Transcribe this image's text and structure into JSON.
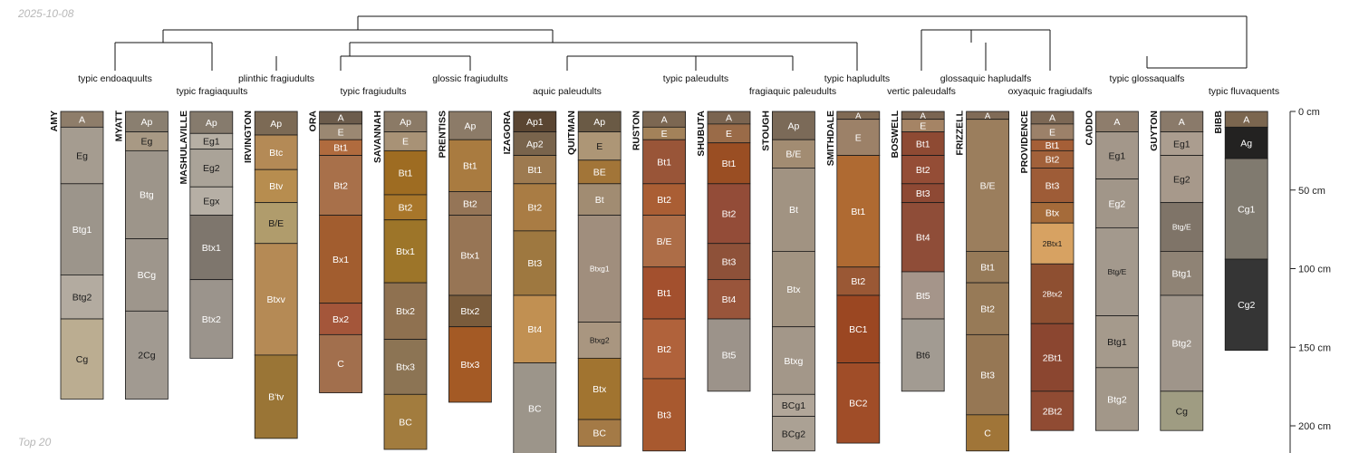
{
  "date_stamp": "2025-10-08",
  "footer_note": "Top 20",
  "depth_axis": {
    "unit": "cm",
    "ticks": [
      {
        "value": 0,
        "label": "0 cm"
      },
      {
        "value": 50,
        "label": "50 cm"
      },
      {
        "value": 100,
        "label": "100 cm"
      },
      {
        "value": 150,
        "label": "150 cm"
      },
      {
        "value": 200,
        "label": "200 cm"
      }
    ]
  },
  "taxa": [
    {
      "label": "typic endoaquults"
    },
    {
      "label": "typic fragiaquults"
    },
    {
      "label": "plinthic fragiudults"
    },
    {
      "label": "typic fragiudults"
    },
    {
      "label": "glossic fragiudults"
    },
    {
      "label": "aquic paleudults"
    },
    {
      "label": "typic paleudults"
    },
    {
      "label": "fragiaquic paleudults"
    },
    {
      "label": "typic hapludults"
    },
    {
      "label": "vertic paleudalfs"
    },
    {
      "label": "glossaquic hapludalfs"
    },
    {
      "label": "oxyaquic fragiudalfs"
    },
    {
      "label": "typic glossaqualfs"
    },
    {
      "label": "typic fluvaquents"
    }
  ],
  "profiles": [
    {
      "name": "AMY",
      "horizons": [
        {
          "name": "A",
          "top": 0,
          "bottom": 10,
          "color": "#8e7d6a"
        },
        {
          "name": "Eg",
          "top": 10,
          "bottom": 46,
          "color": "#a59c90"
        },
        {
          "name": "Btg1",
          "top": 46,
          "bottom": 104,
          "color": "#9c958b"
        },
        {
          "name": "Btg2",
          "top": 104,
          "bottom": 132,
          "color": "#b3aba0"
        },
        {
          "name": "Cg",
          "top": 132,
          "bottom": 183,
          "color": "#bbad91"
        }
      ]
    },
    {
      "name": "MYATT",
      "horizons": [
        {
          "name": "Ap",
          "top": 0,
          "bottom": 13,
          "color": "#8a7f70"
        },
        {
          "name": "Eg",
          "top": 13,
          "bottom": 25,
          "color": "#a89984"
        },
        {
          "name": "Btg",
          "top": 25,
          "bottom": 81,
          "color": "#9d958a"
        },
        {
          "name": "BCg",
          "top": 81,
          "bottom": 127,
          "color": "#9e968c"
        },
        {
          "name": "2Cg",
          "top": 127,
          "bottom": 183,
          "color": "#a19a91"
        }
      ]
    },
    {
      "name": "MASHULAVILLE",
      "horizons": [
        {
          "name": "Ap",
          "top": 0,
          "bottom": 14,
          "color": "#867b6d"
        },
        {
          "name": "Eg1",
          "top": 14,
          "bottom": 24,
          "color": "#b6afa4"
        },
        {
          "name": "Eg2",
          "top": 24,
          "bottom": 48,
          "color": "#aaa398"
        },
        {
          "name": "Egx",
          "top": 48,
          "bottom": 66,
          "color": "#b6afa5"
        },
        {
          "name": "Btx1",
          "top": 66,
          "bottom": 107,
          "color": "#7e766d"
        },
        {
          "name": "Btx2",
          "top": 107,
          "bottom": 157,
          "color": "#9b948c"
        }
      ]
    },
    {
      "name": "IRVINGTON",
      "horizons": [
        {
          "name": "Ap",
          "top": 0,
          "bottom": 15,
          "color": "#7c6a55"
        },
        {
          "name": "Btc",
          "top": 15,
          "bottom": 37,
          "color": "#b48a56"
        },
        {
          "name": "Btv",
          "top": 37,
          "bottom": 58,
          "color": "#b78d4f"
        },
        {
          "name": "B/E",
          "top": 58,
          "bottom": 84,
          "color": "#b09c6c"
        },
        {
          "name": "Btxv",
          "top": 84,
          "bottom": 155,
          "color": "#b58a55"
        },
        {
          "name": "B'tv",
          "top": 155,
          "bottom": 208,
          "color": "#9a7536"
        }
      ]
    },
    {
      "name": "ORA",
      "horizons": [
        {
          "name": "A",
          "top": 0,
          "bottom": 8,
          "color": "#6c5c4c"
        },
        {
          "name": "E",
          "top": 8,
          "bottom": 18,
          "color": "#9b8872"
        },
        {
          "name": "Bt1",
          "top": 18,
          "bottom": 28,
          "color": "#b06b3e"
        },
        {
          "name": "Bt2",
          "top": 28,
          "bottom": 66,
          "color": "#a8704a"
        },
        {
          "name": "Bx1",
          "top": 66,
          "bottom": 122,
          "color": "#a25d2f"
        },
        {
          "name": "Bx2",
          "top": 122,
          "bottom": 142,
          "color": "#a4563a"
        },
        {
          "name": "C",
          "top": 142,
          "bottom": 179,
          "color": "#a26f4d"
        }
      ]
    },
    {
      "name": "SAVANNAH",
      "horizons": [
        {
          "name": "Ap",
          "top": 0,
          "bottom": 13,
          "color": "#8b7a66"
        },
        {
          "name": "E",
          "top": 13,
          "bottom": 25,
          "color": "#a89276"
        },
        {
          "name": "Bt1",
          "top": 25,
          "bottom": 53,
          "color": "#9e6c22"
        },
        {
          "name": "Bt2",
          "top": 53,
          "bottom": 69,
          "color": "#a8762a"
        },
        {
          "name": "Btx1",
          "top": 69,
          "bottom": 109,
          "color": "#9d7529"
        },
        {
          "name": "Btx2",
          "top": 109,
          "bottom": 145,
          "color": "#8f7150"
        },
        {
          "name": "Btx3",
          "top": 145,
          "bottom": 180,
          "color": "#8c7454"
        },
        {
          "name": "BC",
          "top": 180,
          "bottom": 215,
          "color": "#a27c3e"
        }
      ]
    },
    {
      "name": "PRENTISS",
      "horizons": [
        {
          "name": "Ap",
          "top": 0,
          "bottom": 18,
          "color": "#8c7b68"
        },
        {
          "name": "Bt1",
          "top": 18,
          "bottom": 51,
          "color": "#a97b40"
        },
        {
          "name": "Bt2",
          "top": 51,
          "bottom": 66,
          "color": "#957557"
        },
        {
          "name": "Btx1",
          "top": 66,
          "bottom": 117,
          "color": "#977555"
        },
        {
          "name": "Btx2",
          "top": 117,
          "bottom": 137,
          "color": "#7a5c3c"
        },
        {
          "name": "Btx3",
          "top": 137,
          "bottom": 185,
          "color": "#a45a25"
        }
      ]
    },
    {
      "name": "IZAGORA",
      "horizons": [
        {
          "name": "Ap1",
          "top": 0,
          "bottom": 13,
          "color": "#5a4532"
        },
        {
          "name": "Ap2",
          "top": 13,
          "bottom": 28,
          "color": "#79644c"
        },
        {
          "name": "Bt1",
          "top": 28,
          "bottom": 46,
          "color": "#9d7a50"
        },
        {
          "name": "Bt2",
          "top": 46,
          "bottom": 76,
          "color": "#a97c44"
        },
        {
          "name": "Bt3",
          "top": 76,
          "bottom": 117,
          "color": "#9e7840"
        },
        {
          "name": "Bt4",
          "top": 117,
          "bottom": 160,
          "color": "#c19052"
        },
        {
          "name": "BC",
          "top": 160,
          "bottom": 220,
          "color": "#9c958a"
        }
      ]
    },
    {
      "name": "QUITMAN",
      "horizons": [
        {
          "name": "Ap",
          "top": 0,
          "bottom": 13,
          "color": "#6a5a45"
        },
        {
          "name": "E",
          "top": 13,
          "bottom": 31,
          "color": "#ad9676"
        },
        {
          "name": "BE",
          "top": 31,
          "bottom": 46,
          "color": "#a27538"
        },
        {
          "name": "Bt",
          "top": 46,
          "bottom": 66,
          "color": "#a18c72"
        },
        {
          "name": "Btxg1",
          "top": 66,
          "bottom": 134,
          "color": "#a08e7d"
        },
        {
          "name": "Btxg2",
          "top": 134,
          "bottom": 157,
          "color": "#a99680"
        },
        {
          "name": "Btx",
          "top": 157,
          "bottom": 196,
          "color": "#a17430"
        },
        {
          "name": "BC",
          "top": 196,
          "bottom": 213,
          "color": "#a47a46"
        }
      ]
    },
    {
      "name": "RUSTON",
      "horizons": [
        {
          "name": "A",
          "top": 0,
          "bottom": 10,
          "color": "#7c6752"
        },
        {
          "name": "E",
          "top": 10,
          "bottom": 18,
          "color": "#a3825a"
        },
        {
          "name": "Bt1",
          "top": 18,
          "bottom": 46,
          "color": "#995538"
        },
        {
          "name": "Bt2",
          "top": 46,
          "bottom": 66,
          "color": "#aa5e34"
        },
        {
          "name": "B/E",
          "top": 66,
          "bottom": 99,
          "color": "#ad6d47"
        },
        {
          "name": "Bt1",
          "top": 99,
          "bottom": 132,
          "color": "#a3502e"
        },
        {
          "name": "Bt2",
          "top": 132,
          "bottom": 170,
          "color": "#b0623b"
        },
        {
          "name": "Bt3",
          "top": 170,
          "bottom": 216,
          "color": "#a8592f"
        }
      ]
    },
    {
      "name": "SHUBUTA",
      "horizons": [
        {
          "name": "A",
          "top": 0,
          "bottom": 8,
          "color": "#7a6450"
        },
        {
          "name": "E",
          "top": 8,
          "bottom": 20,
          "color": "#9a6b48"
        },
        {
          "name": "Bt1",
          "top": 20,
          "bottom": 46,
          "color": "#9a4e23"
        },
        {
          "name": "Bt2",
          "top": 46,
          "bottom": 84,
          "color": "#934c38"
        },
        {
          "name": "Bt3",
          "top": 84,
          "bottom": 107,
          "color": "#8e5139"
        },
        {
          "name": "Bt4",
          "top": 107,
          "bottom": 132,
          "color": "#99553b"
        },
        {
          "name": "Bt5",
          "top": 132,
          "bottom": 178,
          "color": "#9c938a"
        }
      ]
    },
    {
      "name": "STOUGH",
      "horizons": [
        {
          "name": "Ap",
          "top": 0,
          "bottom": 18,
          "color": "#7b6a58"
        },
        {
          "name": "B/E",
          "top": 18,
          "bottom": 36,
          "color": "#a28c72"
        },
        {
          "name": "Bt",
          "top": 36,
          "bottom": 89,
          "color": "#a19382"
        },
        {
          "name": "Btx",
          "top": 89,
          "bottom": 137,
          "color": "#a29482"
        },
        {
          "name": "Btxg",
          "top": 137,
          "bottom": 180,
          "color": "#a39789"
        },
        {
          "name": "BCg1",
          "top": 180,
          "bottom": 194,
          "color": "#b1a699"
        },
        {
          "name": "BCg2",
          "top": 194,
          "bottom": 216,
          "color": "#aba194"
        }
      ]
    },
    {
      "name": "SMITHDALE",
      "horizons": [
        {
          "name": "A",
          "top": 0,
          "bottom": 5,
          "color": "#806a54"
        },
        {
          "name": "E",
          "top": 5,
          "bottom": 28,
          "color": "#9c8168"
        },
        {
          "name": "Bt1",
          "top": 28,
          "bottom": 99,
          "color": "#af6a32"
        },
        {
          "name": "Bt2",
          "top": 99,
          "bottom": 117,
          "color": "#9a5835"
        },
        {
          "name": "BC1",
          "top": 117,
          "bottom": 160,
          "color": "#9b4722"
        },
        {
          "name": "BC2",
          "top": 160,
          "bottom": 211,
          "color": "#a04d28"
        }
      ]
    },
    {
      "name": "BOSWELL",
      "horizons": [
        {
          "name": "A",
          "top": 0,
          "bottom": 5,
          "color": "#7a6552"
        },
        {
          "name": "E",
          "top": 5,
          "bottom": 13,
          "color": "#a58465"
        },
        {
          "name": "Bt1",
          "top": 13,
          "bottom": 28,
          "color": "#8e4a33"
        },
        {
          "name": "Bt2",
          "top": 28,
          "bottom": 46,
          "color": "#944d36"
        },
        {
          "name": "Bt3",
          "top": 46,
          "bottom": 58,
          "color": "#8e4934"
        },
        {
          "name": "Bt4",
          "top": 58,
          "bottom": 102,
          "color": "#8f4d38"
        },
        {
          "name": "Bt5",
          "top": 102,
          "bottom": 132,
          "color": "#a5958a"
        },
        {
          "name": "Bt6",
          "top": 132,
          "bottom": 178,
          "color": "#a29b92"
        }
      ]
    },
    {
      "name": "FRIZZELL",
      "horizons": [
        {
          "name": "A",
          "top": 0,
          "bottom": 5,
          "color": "#806b57"
        },
        {
          "name": "B/E",
          "top": 5,
          "bottom": 89,
          "color": "#9b7e5d"
        },
        {
          "name": "Bt1",
          "top": 89,
          "bottom": 109,
          "color": "#967a58"
        },
        {
          "name": "Bt2",
          "top": 109,
          "bottom": 142,
          "color": "#977a57"
        },
        {
          "name": "Bt3",
          "top": 142,
          "bottom": 193,
          "color": "#967754"
        },
        {
          "name": "C",
          "top": 193,
          "bottom": 216,
          "color": "#a07538"
        }
      ]
    },
    {
      "name": "PROVIDENCE",
      "horizons": [
        {
          "name": "A",
          "top": 0,
          "bottom": 8,
          "color": "#7c6855"
        },
        {
          "name": "E",
          "top": 8,
          "bottom": 18,
          "color": "#9c8169"
        },
        {
          "name": "Bt1",
          "top": 18,
          "bottom": 25,
          "color": "#a55f37"
        },
        {
          "name": "Bt2",
          "top": 25,
          "bottom": 36,
          "color": "#a2613a"
        },
        {
          "name": "Bt3",
          "top": 36,
          "bottom": 58,
          "color": "#9e5c37"
        },
        {
          "name": "Btx",
          "top": 58,
          "bottom": 71,
          "color": "#a56b3a"
        },
        {
          "name": "2Btx1",
          "top": 71,
          "bottom": 97,
          "color": "#d7a262"
        },
        {
          "name": "2Btx2",
          "top": 97,
          "bottom": 135,
          "color": "#8e4f31"
        },
        {
          "name": "2Bt1",
          "top": 135,
          "bottom": 178,
          "color": "#8b4630"
        },
        {
          "name": "2Bt2",
          "top": 178,
          "bottom": 203,
          "color": "#904b33"
        }
      ]
    },
    {
      "name": "CADDO",
      "horizons": [
        {
          "name": "A",
          "top": 0,
          "bottom": 13,
          "color": "#8e7d6c"
        },
        {
          "name": "Eg1",
          "top": 13,
          "bottom": 43,
          "color": "#a3978a"
        },
        {
          "name": "Eg2",
          "top": 43,
          "bottom": 74,
          "color": "#a19689"
        },
        {
          "name": "Btg/E",
          "top": 74,
          "bottom": 130,
          "color": "#a3998d"
        },
        {
          "name": "Btg1",
          "top": 130,
          "bottom": 163,
          "color": "#a59a8c"
        },
        {
          "name": "Btg2",
          "top": 163,
          "bottom": 203,
          "color": "#a29789"
        }
      ]
    },
    {
      "name": "GUYTON",
      "horizons": [
        {
          "name": "A",
          "top": 0,
          "bottom": 13,
          "color": "#8a7a6a"
        },
        {
          "name": "Eg1",
          "top": 13,
          "bottom": 28,
          "color": "#ab9d8f"
        },
        {
          "name": "Eg2",
          "top": 28,
          "bottom": 58,
          "color": "#a7998b"
        },
        {
          "name": "Btg/E",
          "top": 58,
          "bottom": 89,
          "color": "#7f7468"
        },
        {
          "name": "Btg1",
          "top": 89,
          "bottom": 117,
          "color": "#8f8375"
        },
        {
          "name": "Btg2",
          "top": 117,
          "bottom": 178,
          "color": "#9f958a"
        },
        {
          "name": "Cg",
          "top": 178,
          "bottom": 203,
          "color": "#9f9c82"
        }
      ]
    },
    {
      "name": "BIBB",
      "horizons": [
        {
          "name": "A",
          "top": 0,
          "bottom": 10,
          "color": "#7b664f"
        },
        {
          "name": "Ag",
          "top": 10,
          "bottom": 30,
          "color": "#232221"
        },
        {
          "name": "Cg1",
          "top": 30,
          "bottom": 94,
          "color": "#807a6f"
        },
        {
          "name": "Cg2",
          "top": 94,
          "bottom": 152,
          "color": "#353535"
        }
      ]
    }
  ]
}
